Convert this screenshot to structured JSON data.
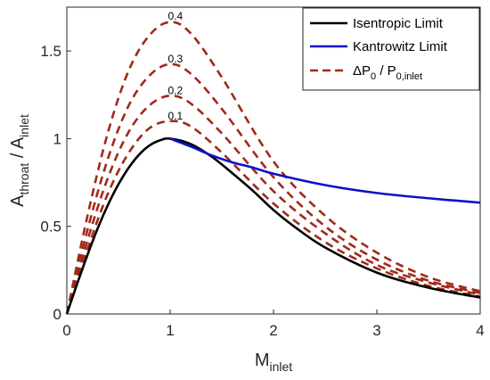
{
  "chart_data": {
    "type": "line",
    "xlabel": {
      "main": "M",
      "sub": "inlet"
    },
    "ylabel": {
      "main1": "A",
      "sub1": "throat",
      "sep": " / ",
      "main2": "A",
      "sub2": "inlet"
    },
    "xlim": [
      0,
      4
    ],
    "ylim": [
      0,
      1.75
    ],
    "xticks": [
      0,
      1,
      2,
      3,
      4
    ],
    "xtick_labels": [
      "0",
      "1",
      "2",
      "3",
      "4"
    ],
    "yticks": [
      0,
      0.5,
      1,
      1.5
    ],
    "ytick_labels": [
      "0",
      "0.5",
      "1",
      "1.5"
    ],
    "grid": false,
    "legend_position": "top-right",
    "legend": {
      "isentropic": "Isentropic Limit",
      "kantrowitz": "Kantrowitz Limit",
      "dashed": {
        "prefix": "ΔP",
        "sub1": "0",
        "mid": " / P",
        "sub2": "0,inlet"
      }
    },
    "series": [
      {
        "key": "isentropic",
        "style": "solid",
        "color": "#000000",
        "x": [
          0,
          0.1,
          0.2,
          0.3,
          0.4,
          0.5,
          0.6,
          0.7,
          0.8,
          0.9,
          1.0,
          1.2,
          1.4,
          1.6,
          1.8,
          2.0,
          2.2,
          2.5,
          3.0,
          3.5,
          4.0
        ],
        "y": [
          0,
          0.172,
          0.337,
          0.49,
          0.625,
          0.74,
          0.835,
          0.909,
          0.961,
          0.99,
          1.0,
          0.969,
          0.898,
          0.804,
          0.703,
          0.593,
          0.499,
          0.379,
          0.236,
          0.15,
          0.094
        ]
      },
      {
        "key": "kantrowitz",
        "style": "solid",
        "color": "#0b12c9",
        "x": [
          1.0,
          1.2,
          1.4,
          1.6,
          1.8,
          2.0,
          2.5,
          3.0,
          3.5,
          4.0
        ],
        "y": [
          1.0,
          0.955,
          0.905,
          0.865,
          0.835,
          0.8,
          0.735,
          0.69,
          0.66,
          0.635
        ]
      },
      {
        "key": "dp_0.1",
        "style": "dashed",
        "color": "#a02a1a",
        "annotation": "0.1",
        "x": [
          0,
          0.2,
          0.4,
          0.6,
          0.8,
          1.0,
          1.2,
          1.5,
          2.0,
          2.5,
          3.0,
          3.5,
          4.0
        ],
        "y": [
          0,
          0.37,
          0.69,
          0.92,
          1.06,
          1.1,
          1.07,
          0.92,
          0.63,
          0.41,
          0.26,
          0.16,
          0.1
        ]
      },
      {
        "key": "dp_0.2",
        "style": "dashed",
        "color": "#a02a1a",
        "annotation": "0.2",
        "x": [
          0,
          0.2,
          0.4,
          0.6,
          0.8,
          1.0,
          1.2,
          1.5,
          2.0,
          2.5,
          3.0,
          3.5,
          4.0
        ],
        "y": [
          0,
          0.42,
          0.78,
          1.04,
          1.19,
          1.245,
          1.2,
          1.03,
          0.7,
          0.46,
          0.28,
          0.18,
          0.11
        ]
      },
      {
        "key": "dp_0.3",
        "style": "dashed",
        "color": "#a02a1a",
        "annotation": "0.3",
        "x": [
          0,
          0.2,
          0.4,
          0.6,
          0.8,
          1.0,
          1.2,
          1.5,
          2.0,
          2.5,
          3.0,
          3.5,
          4.0
        ],
        "y": [
          0,
          0.48,
          0.89,
          1.19,
          1.36,
          1.425,
          1.37,
          1.17,
          0.78,
          0.5,
          0.31,
          0.19,
          0.12
        ]
      },
      {
        "key": "dp_0.4",
        "style": "dashed",
        "color": "#a02a1a",
        "annotation": "0.4",
        "x": [
          0,
          0.2,
          0.4,
          0.6,
          0.8,
          1.0,
          1.2,
          1.5,
          2.0,
          2.5,
          3.0,
          3.5,
          4.0
        ],
        "y": [
          0,
          0.56,
          1.04,
          1.39,
          1.59,
          1.665,
          1.6,
          1.35,
          0.87,
          0.56,
          0.35,
          0.21,
          0.13
        ]
      }
    ],
    "annotations": [
      {
        "text": "0.4",
        "x": 1.05,
        "y": 1.7
      },
      {
        "text": "0.3",
        "x": 1.05,
        "y": 1.455
      },
      {
        "text": "0.2",
        "x": 1.05,
        "y": 1.275
      },
      {
        "text": "0.1",
        "x": 1.05,
        "y": 1.13
      }
    ]
  }
}
